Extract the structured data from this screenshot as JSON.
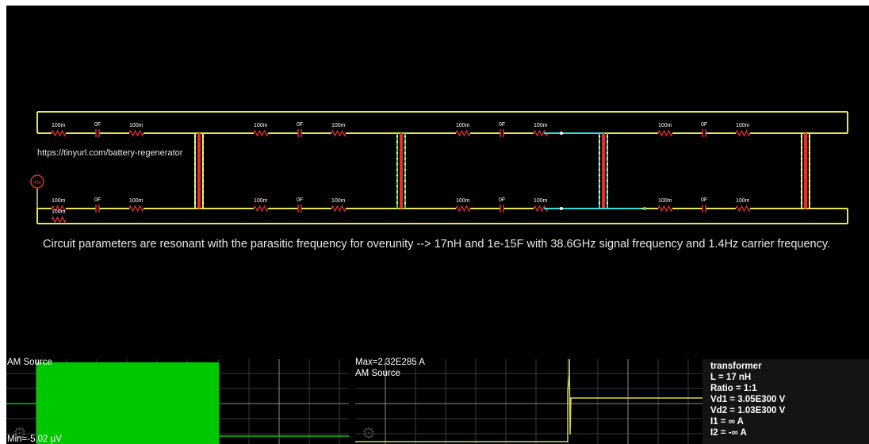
{
  "canvas": {
    "url_text": "https://tinyurl.com/battery-regenerator",
    "description": "Circuit parameters are resonant with the parasitic frequency for overunity --> 17nH and 1e-15F with 38.6GHz signal frequency and 1.4Hz carrier frequency.",
    "source_label": "AM",
    "resistor_label": "100m",
    "capacitor_label": "0F",
    "colors": {
      "wire": "#e8e84a",
      "component": "#e03030",
      "current_green": "#30e030",
      "current_cyan": "#30e0e0",
      "source_ring": "#e03030"
    }
  },
  "scopes": [
    {
      "label": "AM Source",
      "min_text": "Min=-5.02 µV",
      "gear_icon": "gear-icon",
      "trace_color": "#00c800"
    },
    {
      "max_text": "Max=2.32E285 A",
      "label": "AM Source",
      "gear_icon": "gear-icon",
      "trace_color": "#d8d84a"
    }
  ],
  "info": {
    "lines": [
      "transformer",
      "L = 17 nH",
      "Ratio = 1:1",
      "Vd1 = 3.05E300 V",
      "Vd2 = 1.03E300 V",
      "I1 = ∞ A",
      "I2 = -∞ A"
    ]
  }
}
